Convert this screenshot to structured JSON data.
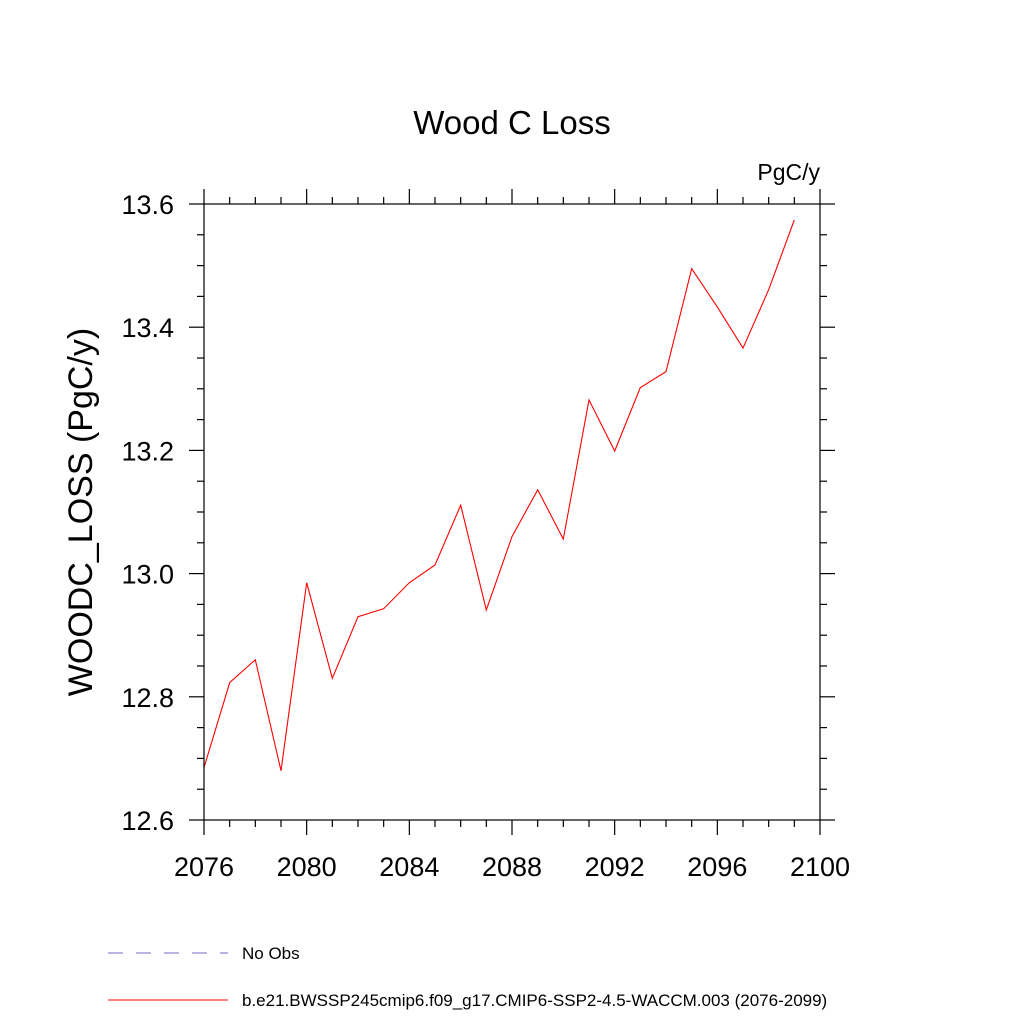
{
  "chart_data": {
    "type": "line",
    "title": "Wood C Loss",
    "units": "PgC/y",
    "xlabel": "",
    "ylabel": "WOODC_LOSS  (PgC/y)",
    "xlim": [
      2076,
      2100
    ],
    "ylim": [
      12.6,
      13.6
    ],
    "x_ticks": [
      2076,
      2080,
      2084,
      2088,
      2092,
      2096,
      2100
    ],
    "x_tick_labels": [
      "2076",
      "2080",
      "2084",
      "2088",
      "2092",
      "2096",
      "2100"
    ],
    "y_ticks": [
      12.6,
      12.8,
      13.0,
      13.2,
      13.4,
      13.6
    ],
    "y_tick_labels": [
      "12.6",
      "12.8",
      "13.0",
      "13.2",
      "13.4",
      "13.6"
    ],
    "grid": false,
    "legend_position": "bottom",
    "series": [
      {
        "name": "b.e21.BWSSP245cmip6.f09_g17.CMIP6-SSP2-4.5-WACCM.003 (2076-2099)",
        "color": "#ff0000",
        "style": "solid",
        "x": [
          2076,
          2077,
          2078,
          2079,
          2080,
          2081,
          2082,
          2083,
          2084,
          2085,
          2086,
          2087,
          2088,
          2089,
          2090,
          2091,
          2092,
          2093,
          2094,
          2095,
          2096,
          2097,
          2098,
          2099
        ],
        "values": [
          12.685,
          12.823,
          12.86,
          12.68,
          12.985,
          12.83,
          12.93,
          12.943,
          12.985,
          13.014,
          13.111,
          12.941,
          13.06,
          13.136,
          13.056,
          13.282,
          13.199,
          13.302,
          13.328,
          13.495,
          13.433,
          13.366,
          13.461,
          13.574
        ]
      },
      {
        "name": "No Obs",
        "color": "#7b68c8",
        "style": "dashed",
        "x": [],
        "values": []
      }
    ]
  }
}
